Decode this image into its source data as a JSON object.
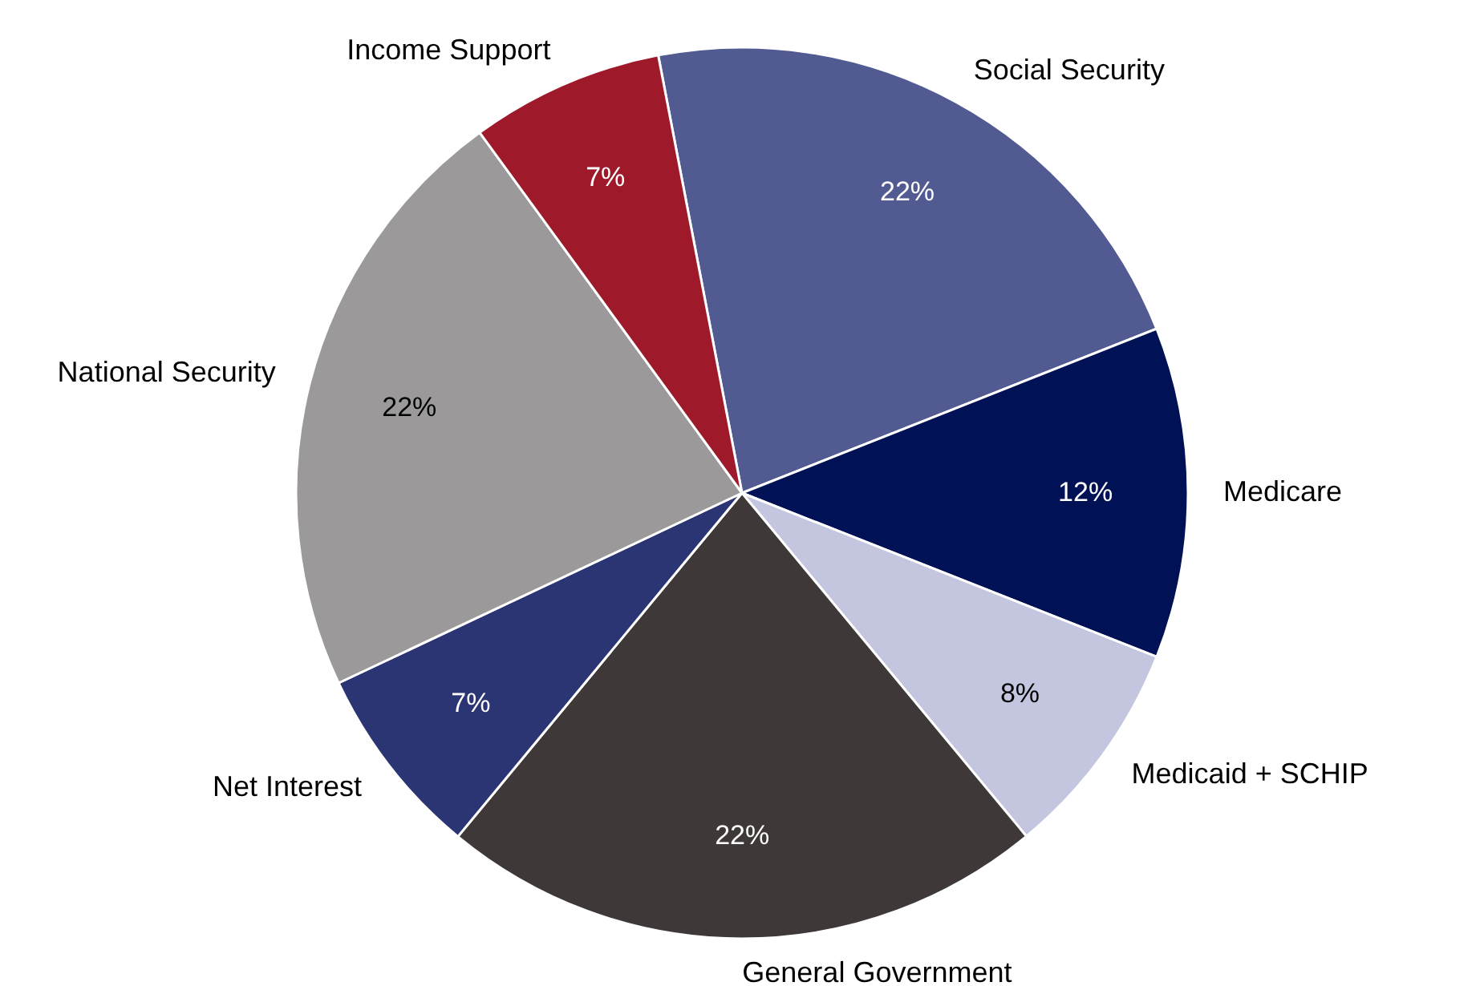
{
  "chart_data": {
    "type": "pie",
    "categories": [
      "Social Security",
      "Medicare",
      "Medicaid + SCHIP",
      "General Government",
      "Net Interest",
      "National Security",
      "Income Support"
    ],
    "values": [
      22,
      12,
      8,
      22,
      7,
      22,
      7
    ],
    "colors": [
      "#525a92",
      "#001155",
      "#c4c6e0",
      "#3e3938",
      "#2b3574",
      "#9b999a",
      "#9e1a2b"
    ],
    "value_labels": [
      "22%",
      "12%",
      "8%",
      "22%",
      "7%",
      "22%",
      "7%"
    ]
  }
}
